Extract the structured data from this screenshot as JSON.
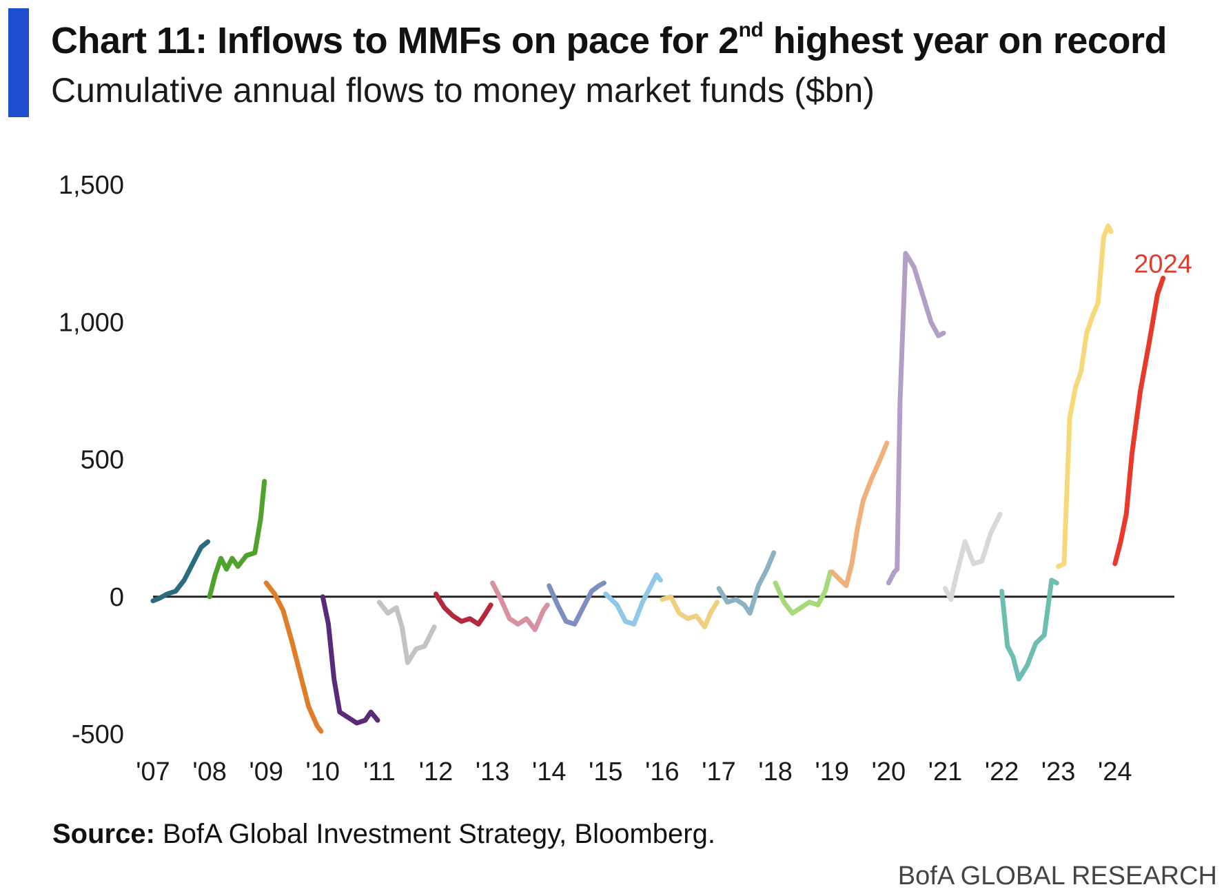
{
  "title_prefix": "Chart 11: Inflows to MMFs on pace for 2",
  "title_sup": "nd",
  "title_suffix": " highest year on record",
  "subtitle": "Cumulative annual flows to money market funds ($bn)",
  "source_label": "Source:",
  "source_text": " BofA Global Investment Strategy, Bloomberg.",
  "brand": "BofA GLOBAL RESEARCH",
  "colors": {
    "accent": "#1f4fd0",
    "zero_line": "#222222",
    "highlight": "#e8392b"
  },
  "chart_data": {
    "type": "line",
    "title": "Chart 11: Inflows to MMFs on pace for 2nd highest year on record",
    "subtitle": "Cumulative annual flows to money market funds ($bn)",
    "xlabel": "",
    "ylabel": "",
    "xlim": [
      2007,
      2025.05
    ],
    "ylim": [
      -500,
      1500
    ],
    "y_ticks": [
      -500,
      0,
      500,
      1000,
      1500
    ],
    "y_tick_labels": [
      "-500",
      "0",
      "500",
      "1,000",
      "1,500"
    ],
    "x_ticks": [
      2007,
      2008,
      2009,
      2010,
      2011,
      2012,
      2013,
      2014,
      2015,
      2016,
      2017,
      2018,
      2019,
      2020,
      2021,
      2022,
      2023,
      2024
    ],
    "x_tick_labels": [
      "'07",
      "'08",
      "'09",
      "'10",
      "'11",
      "'12",
      "'13",
      "'14",
      "'15",
      "'16",
      "'17",
      "'18",
      "'19",
      "'20",
      "'21",
      "'22",
      "'23",
      "'24"
    ],
    "grid": false,
    "zero_line": true,
    "annotations": [
      {
        "text": "2024",
        "x": 2024.85,
        "y": 1210
      }
    ],
    "series": [
      {
        "color": "#2a6b80",
        "points": [
          [
            2007.0,
            -15
          ],
          [
            2007.12,
            -5
          ],
          [
            2007.25,
            10
          ],
          [
            2007.4,
            20
          ],
          [
            2007.55,
            60
          ],
          [
            2007.7,
            120
          ],
          [
            2007.85,
            180
          ],
          [
            2007.97,
            200
          ]
        ]
      },
      {
        "color": "#4fa32d",
        "points": [
          [
            2008.0,
            0
          ],
          [
            2008.1,
            80
          ],
          [
            2008.2,
            140
          ],
          [
            2008.3,
            100
          ],
          [
            2008.4,
            140
          ],
          [
            2008.5,
            110
          ],
          [
            2008.65,
            150
          ],
          [
            2008.8,
            160
          ],
          [
            2008.9,
            280
          ],
          [
            2008.97,
            420
          ]
        ]
      },
      {
        "color": "#e07d2a",
        "points": [
          [
            2009.0,
            50
          ],
          [
            2009.15,
            10
          ],
          [
            2009.3,
            -50
          ],
          [
            2009.45,
            -160
          ],
          [
            2009.6,
            -280
          ],
          [
            2009.75,
            -400
          ],
          [
            2009.9,
            -470
          ],
          [
            2009.97,
            -490
          ]
        ]
      },
      {
        "color": "#5a2a7a",
        "points": [
          [
            2010.0,
            0
          ],
          [
            2010.1,
            -100
          ],
          [
            2010.2,
            -300
          ],
          [
            2010.3,
            -420
          ],
          [
            2010.45,
            -440
          ],
          [
            2010.6,
            -460
          ],
          [
            2010.75,
            -450
          ],
          [
            2010.85,
            -420
          ],
          [
            2010.97,
            -450
          ]
        ]
      },
      {
        "color": "#c3c3c3",
        "points": [
          [
            2011.0,
            -20
          ],
          [
            2011.15,
            -60
          ],
          [
            2011.3,
            -40
          ],
          [
            2011.4,
            -110
          ],
          [
            2011.5,
            -240
          ],
          [
            2011.65,
            -190
          ],
          [
            2011.8,
            -180
          ],
          [
            2011.97,
            -110
          ]
        ]
      },
      {
        "color": "#b3283b",
        "points": [
          [
            2012.0,
            10
          ],
          [
            2012.15,
            -40
          ],
          [
            2012.3,
            -70
          ],
          [
            2012.45,
            -90
          ],
          [
            2012.6,
            -80
          ],
          [
            2012.75,
            -100
          ],
          [
            2012.85,
            -70
          ],
          [
            2012.97,
            -30
          ]
        ]
      },
      {
        "color": "#d9909f",
        "points": [
          [
            2013.0,
            50
          ],
          [
            2013.15,
            -10
          ],
          [
            2013.3,
            -80
          ],
          [
            2013.45,
            -100
          ],
          [
            2013.6,
            -80
          ],
          [
            2013.75,
            -120
          ],
          [
            2013.9,
            -50
          ],
          [
            2013.97,
            -30
          ]
        ]
      },
      {
        "color": "#7f8ec0",
        "points": [
          [
            2014.0,
            40
          ],
          [
            2014.15,
            -30
          ],
          [
            2014.3,
            -90
          ],
          [
            2014.45,
            -100
          ],
          [
            2014.6,
            -40
          ],
          [
            2014.75,
            20
          ],
          [
            2014.88,
            40
          ],
          [
            2014.97,
            50
          ]
        ]
      },
      {
        "color": "#8fc8e8",
        "points": [
          [
            2015.0,
            10
          ],
          [
            2015.2,
            -30
          ],
          [
            2015.35,
            -90
          ],
          [
            2015.5,
            -100
          ],
          [
            2015.65,
            -20
          ],
          [
            2015.8,
            40
          ],
          [
            2015.9,
            80
          ],
          [
            2015.97,
            60
          ]
        ]
      },
      {
        "color": "#f0d080",
        "points": [
          [
            2016.0,
            -10
          ],
          [
            2016.15,
            0
          ],
          [
            2016.3,
            -60
          ],
          [
            2016.45,
            -80
          ],
          [
            2016.6,
            -70
          ],
          [
            2016.75,
            -110
          ],
          [
            2016.85,
            -60
          ],
          [
            2016.97,
            -20
          ]
        ]
      },
      {
        "color": "#8db3c0",
        "points": [
          [
            2017.0,
            30
          ],
          [
            2017.15,
            -20
          ],
          [
            2017.3,
            -10
          ],
          [
            2017.45,
            -30
          ],
          [
            2017.55,
            -60
          ],
          [
            2017.7,
            40
          ],
          [
            2017.85,
            100
          ],
          [
            2017.97,
            160
          ]
        ]
      },
      {
        "color": "#a6d97a",
        "points": [
          [
            2018.0,
            50
          ],
          [
            2018.15,
            -20
          ],
          [
            2018.3,
            -60
          ],
          [
            2018.45,
            -40
          ],
          [
            2018.6,
            -20
          ],
          [
            2018.75,
            -30
          ],
          [
            2018.88,
            20
          ],
          [
            2018.97,
            90
          ]
        ]
      },
      {
        "color": "#f0b07a",
        "points": [
          [
            2019.0,
            90
          ],
          [
            2019.15,
            60
          ],
          [
            2019.25,
            40
          ],
          [
            2019.35,
            120
          ],
          [
            2019.45,
            250
          ],
          [
            2019.55,
            350
          ],
          [
            2019.7,
            430
          ],
          [
            2019.85,
            500
          ],
          [
            2019.97,
            560
          ]
        ]
      },
      {
        "color": "#b39ec8",
        "points": [
          [
            2020.0,
            50
          ],
          [
            2020.1,
            90
          ],
          [
            2020.15,
            100
          ],
          [
            2020.2,
            700
          ],
          [
            2020.3,
            1250
          ],
          [
            2020.45,
            1200
          ],
          [
            2020.6,
            1100
          ],
          [
            2020.75,
            1000
          ],
          [
            2020.88,
            950
          ],
          [
            2020.97,
            960
          ]
        ]
      },
      {
        "color": "#d8d8d8",
        "points": [
          [
            2021.0,
            30
          ],
          [
            2021.1,
            -10
          ],
          [
            2021.2,
            80
          ],
          [
            2021.35,
            200
          ],
          [
            2021.5,
            120
          ],
          [
            2021.65,
            130
          ],
          [
            2021.8,
            230
          ],
          [
            2021.97,
            300
          ]
        ]
      },
      {
        "color": "#6cbfb0",
        "points": [
          [
            2022.0,
            20
          ],
          [
            2022.1,
            -180
          ],
          [
            2022.2,
            -220
          ],
          [
            2022.3,
            -300
          ],
          [
            2022.45,
            -250
          ],
          [
            2022.6,
            -170
          ],
          [
            2022.75,
            -140
          ],
          [
            2022.88,
            60
          ],
          [
            2022.97,
            50
          ]
        ]
      },
      {
        "color": "#f5d97a",
        "points": [
          [
            2023.0,
            110
          ],
          [
            2023.1,
            120
          ],
          [
            2023.2,
            650
          ],
          [
            2023.3,
            760
          ],
          [
            2023.4,
            820
          ],
          [
            2023.5,
            960
          ],
          [
            2023.6,
            1020
          ],
          [
            2023.7,
            1070
          ],
          [
            2023.8,
            1310
          ],
          [
            2023.88,
            1350
          ],
          [
            2023.93,
            1330
          ]
        ]
      },
      {
        "color": "#e8392b",
        "points": [
          [
            2024.0,
            120
          ],
          [
            2024.1,
            200
          ],
          [
            2024.2,
            300
          ],
          [
            2024.3,
            520
          ],
          [
            2024.45,
            750
          ],
          [
            2024.6,
            920
          ],
          [
            2024.75,
            1100
          ],
          [
            2024.85,
            1160
          ]
        ]
      }
    ]
  }
}
